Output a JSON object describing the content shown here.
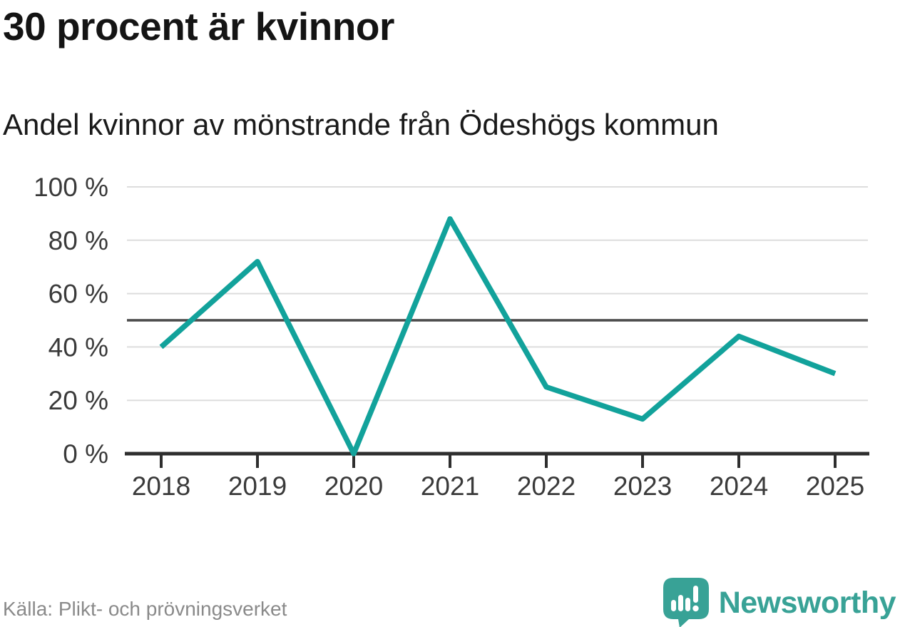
{
  "header": {
    "title": "30 procent är kvinnor",
    "subtitle": "Andel kvinnor av mönstrande från Ödeshögs kommun"
  },
  "footer": {
    "source": "Källa: Plikt- och prövningsverket",
    "brand_name": "Newsworthy",
    "brand_logo_icon": "speech-bubble-bar-chart-exclamation"
  },
  "colors": {
    "line": "#12a29b",
    "brand_teal": "#38a296",
    "grid": "#dddddd",
    "reference_line": "#4a4a4a",
    "axis": "#2e2e2e",
    "tick_label": "#3a3a3a",
    "title_text": "#141414",
    "muted_text": "#8a8a8a"
  },
  "chart_data": {
    "type": "line",
    "title": "30 procent är kvinnor",
    "subtitle": "Andel kvinnor av mönstrande från Ödeshögs kommun",
    "x": [
      2018,
      2019,
      2020,
      2021,
      2022,
      2023,
      2024,
      2025
    ],
    "series": [
      {
        "name": "Andel kvinnor av mönstrande",
        "values": [
          40,
          72,
          0,
          88,
          25,
          13,
          44,
          30
        ]
      }
    ],
    "unit": "%",
    "xlabel": "",
    "ylabel": "",
    "ylim": [
      0,
      100
    ],
    "y_ticks": [
      {
        "value": 100,
        "label": "100 %"
      },
      {
        "value": 80,
        "label": "80 %"
      },
      {
        "value": 60,
        "label": "60 %"
      },
      {
        "value": 40,
        "label": "40 %"
      },
      {
        "value": 20,
        "label": "20 %"
      },
      {
        "value": 0,
        "label": "0 %"
      }
    ],
    "reference_line": 50,
    "grid": "horizontal",
    "legend": "none",
    "source": "Källa: Plikt- och prövningsverket"
  }
}
